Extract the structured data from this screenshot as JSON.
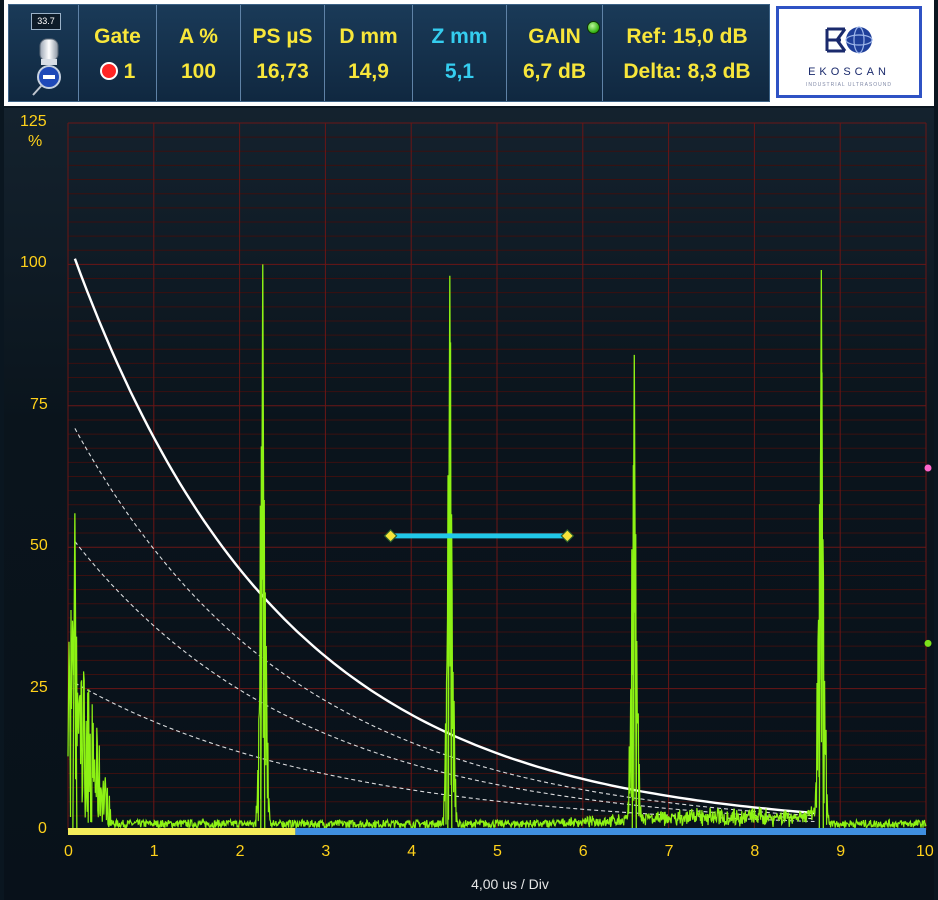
{
  "header": {
    "probe": {
      "value": "33.7"
    },
    "gate": {
      "label": "Gate",
      "value": "1",
      "indicator_color": "#ff2626"
    },
    "amplitude": {
      "label": "A %",
      "value": "100"
    },
    "path": {
      "label": "PS µS",
      "value": "16,73"
    },
    "depth": {
      "label": "D mm",
      "value": "14,9"
    },
    "z": {
      "label": "Z mm",
      "value": "5,1"
    },
    "gain": {
      "label": "GAIN",
      "value": "6,7 dB",
      "led_color": "#38b618"
    },
    "reference": {
      "ref": "Ref: 15,0 dB",
      "delta": "Delta: 8,3 dB"
    },
    "logo": {
      "name": "EKOSCAN",
      "tagline": "INDUSTRIAL ULTRASOUND"
    }
  },
  "scope": {
    "y_unit": "%",
    "y_ticks": [
      "125",
      "100",
      "75",
      "50",
      "25",
      "0"
    ],
    "x_ticks": [
      "0",
      "1",
      "2",
      "3",
      "4",
      "5",
      "6",
      "7",
      "8",
      "9",
      "10"
    ],
    "x_label": "4,00 us / Div",
    "colors": {
      "signal": "#8df214",
      "dac_curve": "#ffffff",
      "gate": "#21c8e8",
      "axis_text": "#ffd11a",
      "grid_major": "#6a1616",
      "grid_minor": "#3a1010"
    },
    "gate_bar": {
      "start_div": 3.76,
      "end_div": 5.82,
      "level_pct": 52
    },
    "range_bar": {
      "yellow_end_div": 2.65
    },
    "right_markers": [
      {
        "level_pct": 64,
        "color": "#ff66cc"
      },
      {
        "level_pct": 33,
        "color": "#7ce21a"
      }
    ],
    "echoes": [
      {
        "pos_div": 0.08,
        "peak_pct": 56
      },
      {
        "pos_div": 2.27,
        "peak_pct": 100
      },
      {
        "pos_div": 4.45,
        "peak_pct": 98
      },
      {
        "pos_div": 6.6,
        "peak_pct": 84
      },
      {
        "pos_div": 8.78,
        "peak_pct": 99
      }
    ],
    "dac_curves": [
      {
        "style": "solid",
        "start_pct": 101,
        "end_pct": 3
      },
      {
        "style": "dashed",
        "start_pct": 71,
        "end_pct": 2.5
      },
      {
        "style": "dashed",
        "start_pct": 51,
        "end_pct": 2
      },
      {
        "style": "dashed",
        "start_pct": 26,
        "end_pct": 1.5
      }
    ]
  }
}
